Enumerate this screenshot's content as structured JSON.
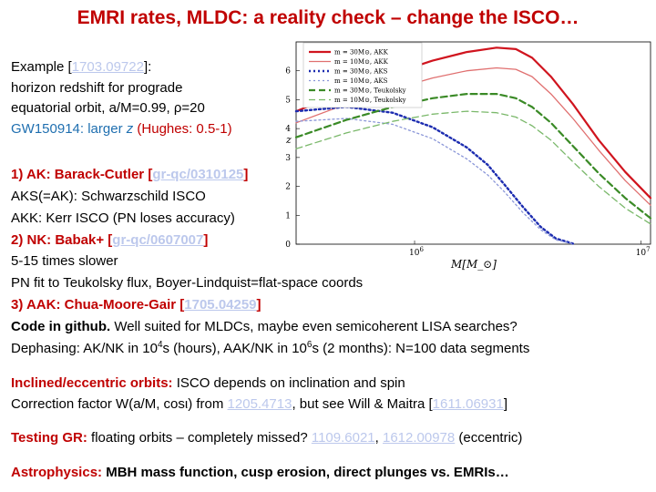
{
  "title": "EMRI rates, MLDC: a reality check – change the ISCO…",
  "example": {
    "label": "Example [",
    "ref": "1703.09722",
    "close": "]:"
  },
  "line_redshift": "horizon redshift for prograde",
  "line_orbit": "equatorial orbit, a/M=0.99, ρ=20",
  "gw": {
    "name": "GW150914:",
    "text": " larger ",
    "z": "z",
    "hughes": " (Hughes: 0.5-1)"
  },
  "ak": {
    "label": "1) AK: Barack-Cutler [",
    "ref": "gr-qc/0310125",
    "close": "]"
  },
  "aks_line": "AKS(=AK): Schwarzschild ISCO",
  "akk_line": "AKK: Kerr ISCO (PN loses accuracy)",
  "nk": {
    "label": "2) NK: Babak+ [",
    "ref": "gr-qc/0607007",
    "close": "]"
  },
  "slower_line": "5-15 times slower",
  "pn_line": "PN fit to Teukolsky flux, Boyer-Lindquist=flat-space coords",
  "aak": {
    "label": "3) AAK: Chua-Moore-Gair [",
    "ref": "1705.04259",
    "close": "]"
  },
  "code": {
    "bold": "Code in github.",
    "rest": " Well suited for MLDCs, maybe even semicoherent LISA searches?"
  },
  "dephasing": {
    "a": "Dephasing: AK/NK in 10",
    "e1": "4",
    "b": "s (hours), AAK/NK in 10",
    "e2": "6",
    "c": "s (2 months): N=100 data segments"
  },
  "inclined": {
    "label": "Inclined/eccentric orbits:",
    "text": " ISCO depends on inclination and spin"
  },
  "correction": {
    "a": "Correction factor W(a/M, cosι) from ",
    "ref1": "1205.4713",
    "b": ", but see Will & Maitra [",
    "ref2": "1611.06931",
    "c": "]"
  },
  "testing": {
    "label": "Testing GR:",
    "a": " floating orbits – completely missed? ",
    "ref1": "1109.6021",
    "b": ", ",
    "ref2": "1612.00978",
    "c": " (eccentric)"
  },
  "astro": {
    "label": "Astrophysics:",
    "text": " MBH mass function, cusp erosion, direct plunges vs. EMRIs…"
  },
  "chart_data": {
    "type": "line",
    "title": "",
    "xlabel": "M[M_⊙]",
    "ylabel": "z",
    "xscale": "log",
    "xlim": [
      300000,
      11000000
    ],
    "ylim": [
      0,
      7
    ],
    "yticks": [
      0,
      1,
      2,
      3,
      4,
      5,
      6
    ],
    "xticks": [
      {
        "value": 1000000,
        "label": "10^6"
      },
      {
        "value": 10000000,
        "label": "10^7"
      }
    ],
    "series": [
      {
        "name": "m = 30M⊙, AKK",
        "color": "#d0141e",
        "dash": "solid",
        "width": 2.2,
        "x": [
          300000,
          500000,
          800000,
          1200000,
          1700000,
          2300000,
          2800000,
          3300000,
          4000000,
          5000000,
          6500000,
          8500000,
          11000000
        ],
        "y": [
          4.6,
          5.3,
          5.9,
          6.35,
          6.65,
          6.8,
          6.75,
          6.45,
          5.8,
          4.85,
          3.6,
          2.5,
          1.6
        ]
      },
      {
        "name": "m = 10M⊙, AKK",
        "color": "#e07070",
        "dash": "solid",
        "width": 1.3,
        "x": [
          300000,
          500000,
          800000,
          1200000,
          1700000,
          2300000,
          2800000,
          3300000,
          4000000,
          5000000,
          6500000,
          8500000,
          11000000
        ],
        "y": [
          4.2,
          4.85,
          5.35,
          5.75,
          6.0,
          6.1,
          6.05,
          5.8,
          5.2,
          4.35,
          3.25,
          2.2,
          1.35
        ]
      },
      {
        "name": "m = 30M⊙, AKS",
        "color": "#1c2cb0",
        "dash": "dotted",
        "width": 2.4,
        "x": [
          300000,
          500000,
          800000,
          1200000,
          1700000,
          2100000,
          2500000,
          3000000,
          3600000,
          4200000,
          5000000
        ],
        "y": [
          4.6,
          4.75,
          4.55,
          4.05,
          3.35,
          2.75,
          2.05,
          1.3,
          0.6,
          0.2,
          0.02
        ]
      },
      {
        "name": "m = 10M⊙, AKS",
        "color": "#8a96d8",
        "dash": "dotted",
        "width": 1.3,
        "x": [
          300000,
          500000,
          800000,
          1200000,
          1700000,
          2100000,
          2500000,
          3000000,
          3600000,
          4200000,
          5000000
        ],
        "y": [
          4.25,
          4.35,
          4.15,
          3.65,
          2.95,
          2.4,
          1.8,
          1.1,
          0.5,
          0.15,
          0.01
        ]
      },
      {
        "name": "m = 30M⊙, Teukolsky",
        "color": "#3a8a26",
        "dash": "dashed",
        "width": 2.2,
        "x": [
          300000,
          500000,
          800000,
          1200000,
          1700000,
          2300000,
          2800000,
          3300000,
          4000000,
          5000000,
          6500000,
          8500000,
          11000000
        ],
        "y": [
          3.7,
          4.3,
          4.75,
          5.05,
          5.2,
          5.2,
          5.05,
          4.75,
          4.2,
          3.4,
          2.45,
          1.6,
          0.9
        ]
      },
      {
        "name": "m = 10M⊙, Teukolsky",
        "color": "#7ab86a",
        "dash": "dashed",
        "width": 1.3,
        "x": [
          300000,
          500000,
          800000,
          1200000,
          1700000,
          2300000,
          2800000,
          3300000,
          4000000,
          5000000,
          6500000,
          8500000,
          11000000
        ],
        "y": [
          3.3,
          3.85,
          4.25,
          4.5,
          4.6,
          4.55,
          4.4,
          4.1,
          3.6,
          2.85,
          2.0,
          1.25,
          0.7
        ]
      }
    ]
  }
}
